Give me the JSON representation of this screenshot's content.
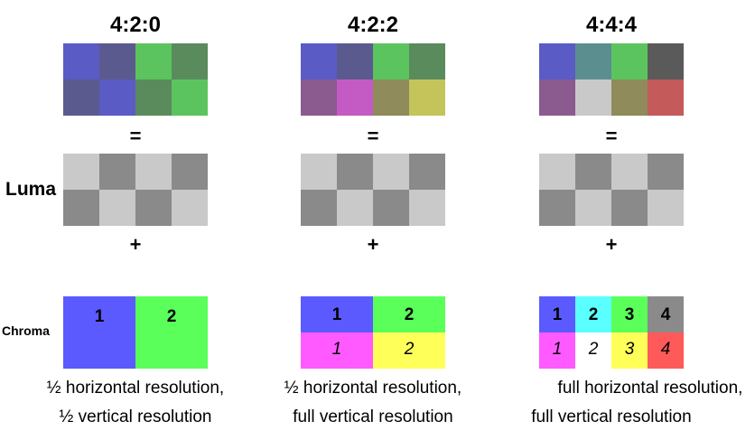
{
  "side_labels": {
    "luma": "Luma",
    "chroma": "Chroma"
  },
  "operators": {
    "equals": "=",
    "plus": "+"
  },
  "panels": [
    {
      "title": "4:2:0",
      "result_colors": [
        [
          "#5a5bc4",
          "#5b5a8f",
          "#5cc45e",
          "#5a8b5c"
        ],
        [
          "#5b5a8f",
          "#5a5bc4",
          "#5a8b5c",
          "#5cc45e"
        ]
      ],
      "luma_colors": [
        [
          "#c9c9c9",
          "#8a8a8a",
          "#c9c9c9",
          "#8a8a8a"
        ],
        [
          "#8a8a8a",
          "#c9c9c9",
          "#8a8a8a",
          "#c9c9c9"
        ]
      ],
      "chroma_blocks": [
        {
          "label": "1",
          "color": "#5a5aff"
        },
        {
          "label": "2",
          "color": "#5aff5a"
        }
      ],
      "caption_line1": "½ horizontal resolution,",
      "caption_line2": "½ vertical resolution"
    },
    {
      "title": "4:2:2",
      "result_colors": [
        [
          "#5a5bc4",
          "#5b5a8f",
          "#5cc45e",
          "#5a8b5c"
        ],
        [
          "#8b5a8f",
          "#c45bc4",
          "#8f8b5a",
          "#c4c45b"
        ]
      ],
      "luma_colors": [
        [
          "#c9c9c9",
          "#8a8a8a",
          "#c9c9c9",
          "#8a8a8a"
        ],
        [
          "#8a8a8a",
          "#c9c9c9",
          "#8a8a8a",
          "#c9c9c9"
        ]
      ],
      "chroma_top": [
        {
          "label": "1",
          "color": "#5a5aff"
        },
        {
          "label": "2",
          "color": "#5aff5a"
        }
      ],
      "chroma_bottom": [
        {
          "label": "1",
          "color": "#ff5aff"
        },
        {
          "label": "2",
          "color": "#ffff5a"
        }
      ],
      "caption_line1": "½ horizontal resolution,",
      "caption_line2": "full vertical resolution"
    },
    {
      "title": "4:4:4",
      "result_colors": [
        [
          "#5a5bc4",
          "#5b8f8f",
          "#5cc45e",
          "#5a5a5a"
        ],
        [
          "#8b5a8f",
          "#c9c9c9",
          "#8f8b5a",
          "#c45a5a"
        ]
      ],
      "luma_colors": [
        [
          "#c9c9c9",
          "#8a8a8a",
          "#c9c9c9",
          "#8a8a8a"
        ],
        [
          "#8a8a8a",
          "#c9c9c9",
          "#8a8a8a",
          "#c9c9c9"
        ]
      ],
      "chroma_top": [
        {
          "label": "1",
          "color": "#5a5aff"
        },
        {
          "label": "2",
          "color": "#5affff"
        },
        {
          "label": "3",
          "color": "#5aff5a"
        },
        {
          "label": "4",
          "color": "#8a8a8a"
        }
      ],
      "chroma_bottom": [
        {
          "label": "1",
          "color": "#ff5aff"
        },
        {
          "label": "2",
          "color": "#ffffff"
        },
        {
          "label": "3",
          "color": "#ffff5a"
        },
        {
          "label": "4",
          "color": "#ff5a5a"
        }
      ],
      "caption_line1": "full horizontal resolution,",
      "caption_line2": "full vertical resolution"
    }
  ]
}
